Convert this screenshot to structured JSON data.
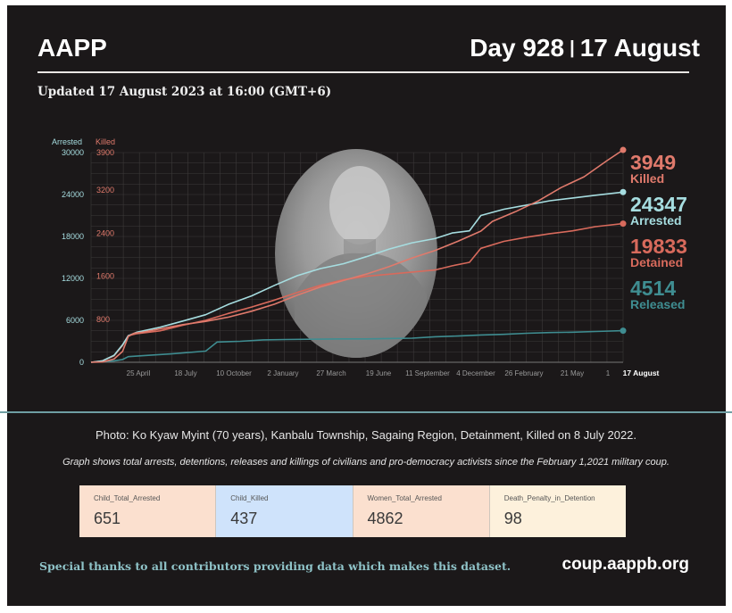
{
  "header": {
    "brand": "AAPP",
    "day": "Day 928",
    "date": "17 August",
    "updated": "Updated 17 August 2023 at 16:00 (GMT+6)"
  },
  "colors": {
    "background": "#1b1819",
    "killed": "#e07a6c",
    "arrested": "#a6dde0",
    "detained": "#d86a5c",
    "released": "#3f8d91",
    "divider": "#6f9ea3"
  },
  "chart_data": {
    "type": "line",
    "left_axis_label": "Arrested",
    "right_axis_label": "Killed",
    "left_ticks": [
      "0",
      "6000",
      "12000",
      "18000",
      "24000",
      "30000"
    ],
    "right_ticks": [
      "800",
      "1600",
      "2400",
      "3200",
      "3900"
    ],
    "ylim_arrested": [
      0,
      30000
    ],
    "ylim_killed": [
      0,
      3900
    ],
    "x_ticks": [
      "25 April",
      "18 July",
      "10 October",
      "2 January",
      "27 March",
      "19 June",
      "11 September",
      "4 December",
      "26 February",
      "21 May",
      "17 August"
    ],
    "x_range_days": [
      0,
      928
    ],
    "grid": true,
    "series": [
      {
        "name": "Killed",
        "axis": "right",
        "final_value": 3949,
        "points": [
          [
            0,
            0
          ],
          [
            20,
            5
          ],
          [
            40,
            60
          ],
          [
            55,
            200
          ],
          [
            65,
            480
          ],
          [
            75,
            540
          ],
          [
            90,
            560
          ],
          [
            120,
            620
          ],
          [
            160,
            700
          ],
          [
            200,
            760
          ],
          [
            240,
            840
          ],
          [
            280,
            950
          ],
          [
            320,
            1080
          ],
          [
            360,
            1250
          ],
          [
            400,
            1400
          ],
          [
            440,
            1520
          ],
          [
            480,
            1640
          ],
          [
            520,
            1780
          ],
          [
            560,
            1940
          ],
          [
            600,
            2080
          ],
          [
            640,
            2250
          ],
          [
            680,
            2440
          ],
          [
            700,
            2620
          ],
          [
            740,
            2800
          ],
          [
            780,
            3000
          ],
          [
            820,
            3250
          ],
          [
            860,
            3450
          ],
          [
            900,
            3750
          ],
          [
            928,
            3949
          ]
        ]
      },
      {
        "name": "Arrested",
        "axis": "left",
        "final_value": 24347,
        "points": [
          [
            0,
            0
          ],
          [
            20,
            200
          ],
          [
            40,
            1000
          ],
          [
            55,
            2500
          ],
          [
            65,
            3800
          ],
          [
            80,
            4300
          ],
          [
            120,
            5000
          ],
          [
            160,
            5900
          ],
          [
            200,
            6800
          ],
          [
            240,
            8300
          ],
          [
            280,
            9500
          ],
          [
            320,
            11000
          ],
          [
            360,
            12400
          ],
          [
            400,
            13400
          ],
          [
            440,
            14100
          ],
          [
            480,
            15100
          ],
          [
            520,
            16200
          ],
          [
            560,
            17100
          ],
          [
            600,
            17700
          ],
          [
            630,
            18500
          ],
          [
            660,
            18800
          ],
          [
            680,
            21000
          ],
          [
            720,
            21900
          ],
          [
            760,
            22500
          ],
          [
            800,
            23100
          ],
          [
            840,
            23500
          ],
          [
            880,
            23900
          ],
          [
            928,
            24347
          ]
        ]
      },
      {
        "name": "Detained",
        "axis": "left",
        "final_value": 19833,
        "points": [
          [
            0,
            0
          ],
          [
            20,
            200
          ],
          [
            40,
            900
          ],
          [
            55,
            2400
          ],
          [
            65,
            3800
          ],
          [
            80,
            4100
          ],
          [
            120,
            4500
          ],
          [
            160,
            5300
          ],
          [
            200,
            6000
          ],
          [
            240,
            7000
          ],
          [
            280,
            7900
          ],
          [
            320,
            8900
          ],
          [
            360,
            10000
          ],
          [
            400,
            11000
          ],
          [
            440,
            11800
          ],
          [
            480,
            12300
          ],
          [
            520,
            12600
          ],
          [
            560,
            12900
          ],
          [
            600,
            13200
          ],
          [
            630,
            13800
          ],
          [
            660,
            14300
          ],
          [
            680,
            16300
          ],
          [
            720,
            17300
          ],
          [
            760,
            17900
          ],
          [
            800,
            18400
          ],
          [
            840,
            18800
          ],
          [
            880,
            19400
          ],
          [
            928,
            19833
          ]
        ]
      },
      {
        "name": "Released",
        "axis": "left",
        "final_value": 4514,
        "points": [
          [
            0,
            0
          ],
          [
            20,
            100
          ],
          [
            40,
            200
          ],
          [
            55,
            400
          ],
          [
            65,
            800
          ],
          [
            100,
            1000
          ],
          [
            140,
            1200
          ],
          [
            200,
            1600
          ],
          [
            220,
            2900
          ],
          [
            260,
            3000
          ],
          [
            300,
            3200
          ],
          [
            340,
            3250
          ],
          [
            400,
            3300
          ],
          [
            440,
            3350
          ],
          [
            480,
            3350
          ],
          [
            520,
            3400
          ],
          [
            560,
            3450
          ],
          [
            600,
            3650
          ],
          [
            640,
            3750
          ],
          [
            680,
            3900
          ],
          [
            720,
            4000
          ],
          [
            760,
            4150
          ],
          [
            800,
            4250
          ],
          [
            840,
            4300
          ],
          [
            880,
            4400
          ],
          [
            928,
            4514
          ]
        ]
      }
    ],
    "annotations": [
      {
        "value": "3949",
        "label": "Killed"
      },
      {
        "value": "24347",
        "label": "Arrested"
      },
      {
        "value": "19833",
        "label": "Detained"
      },
      {
        "value": "4514",
        "label": "Released"
      }
    ]
  },
  "caption": "Photo: Ko Kyaw Myint (70 years), Kanbalu Township, Sagaing Region, Detainment, Killed on 8 July 2022.",
  "note": "Graph shows total arrests, detentions, releases and killings of civilians and pro-democracy activists since the February 1,2021 military coup.",
  "cards": [
    {
      "label": "Child_Total_Arrested",
      "value": "651",
      "color": "#fbe0cf"
    },
    {
      "label": "Child_Killed",
      "value": "437",
      "color": "#cfe3fb"
    },
    {
      "label": "Women_Total_Arrested",
      "value": "4862",
      "color": "#fbe0cf"
    },
    {
      "label": "Death_Penalty_in_Detention",
      "value": "98",
      "color": "#fdf1dc"
    }
  ],
  "footer": {
    "thanks": "Special thanks to all contributors providing data which makes this dataset.",
    "site": "coup.aappb.org"
  }
}
